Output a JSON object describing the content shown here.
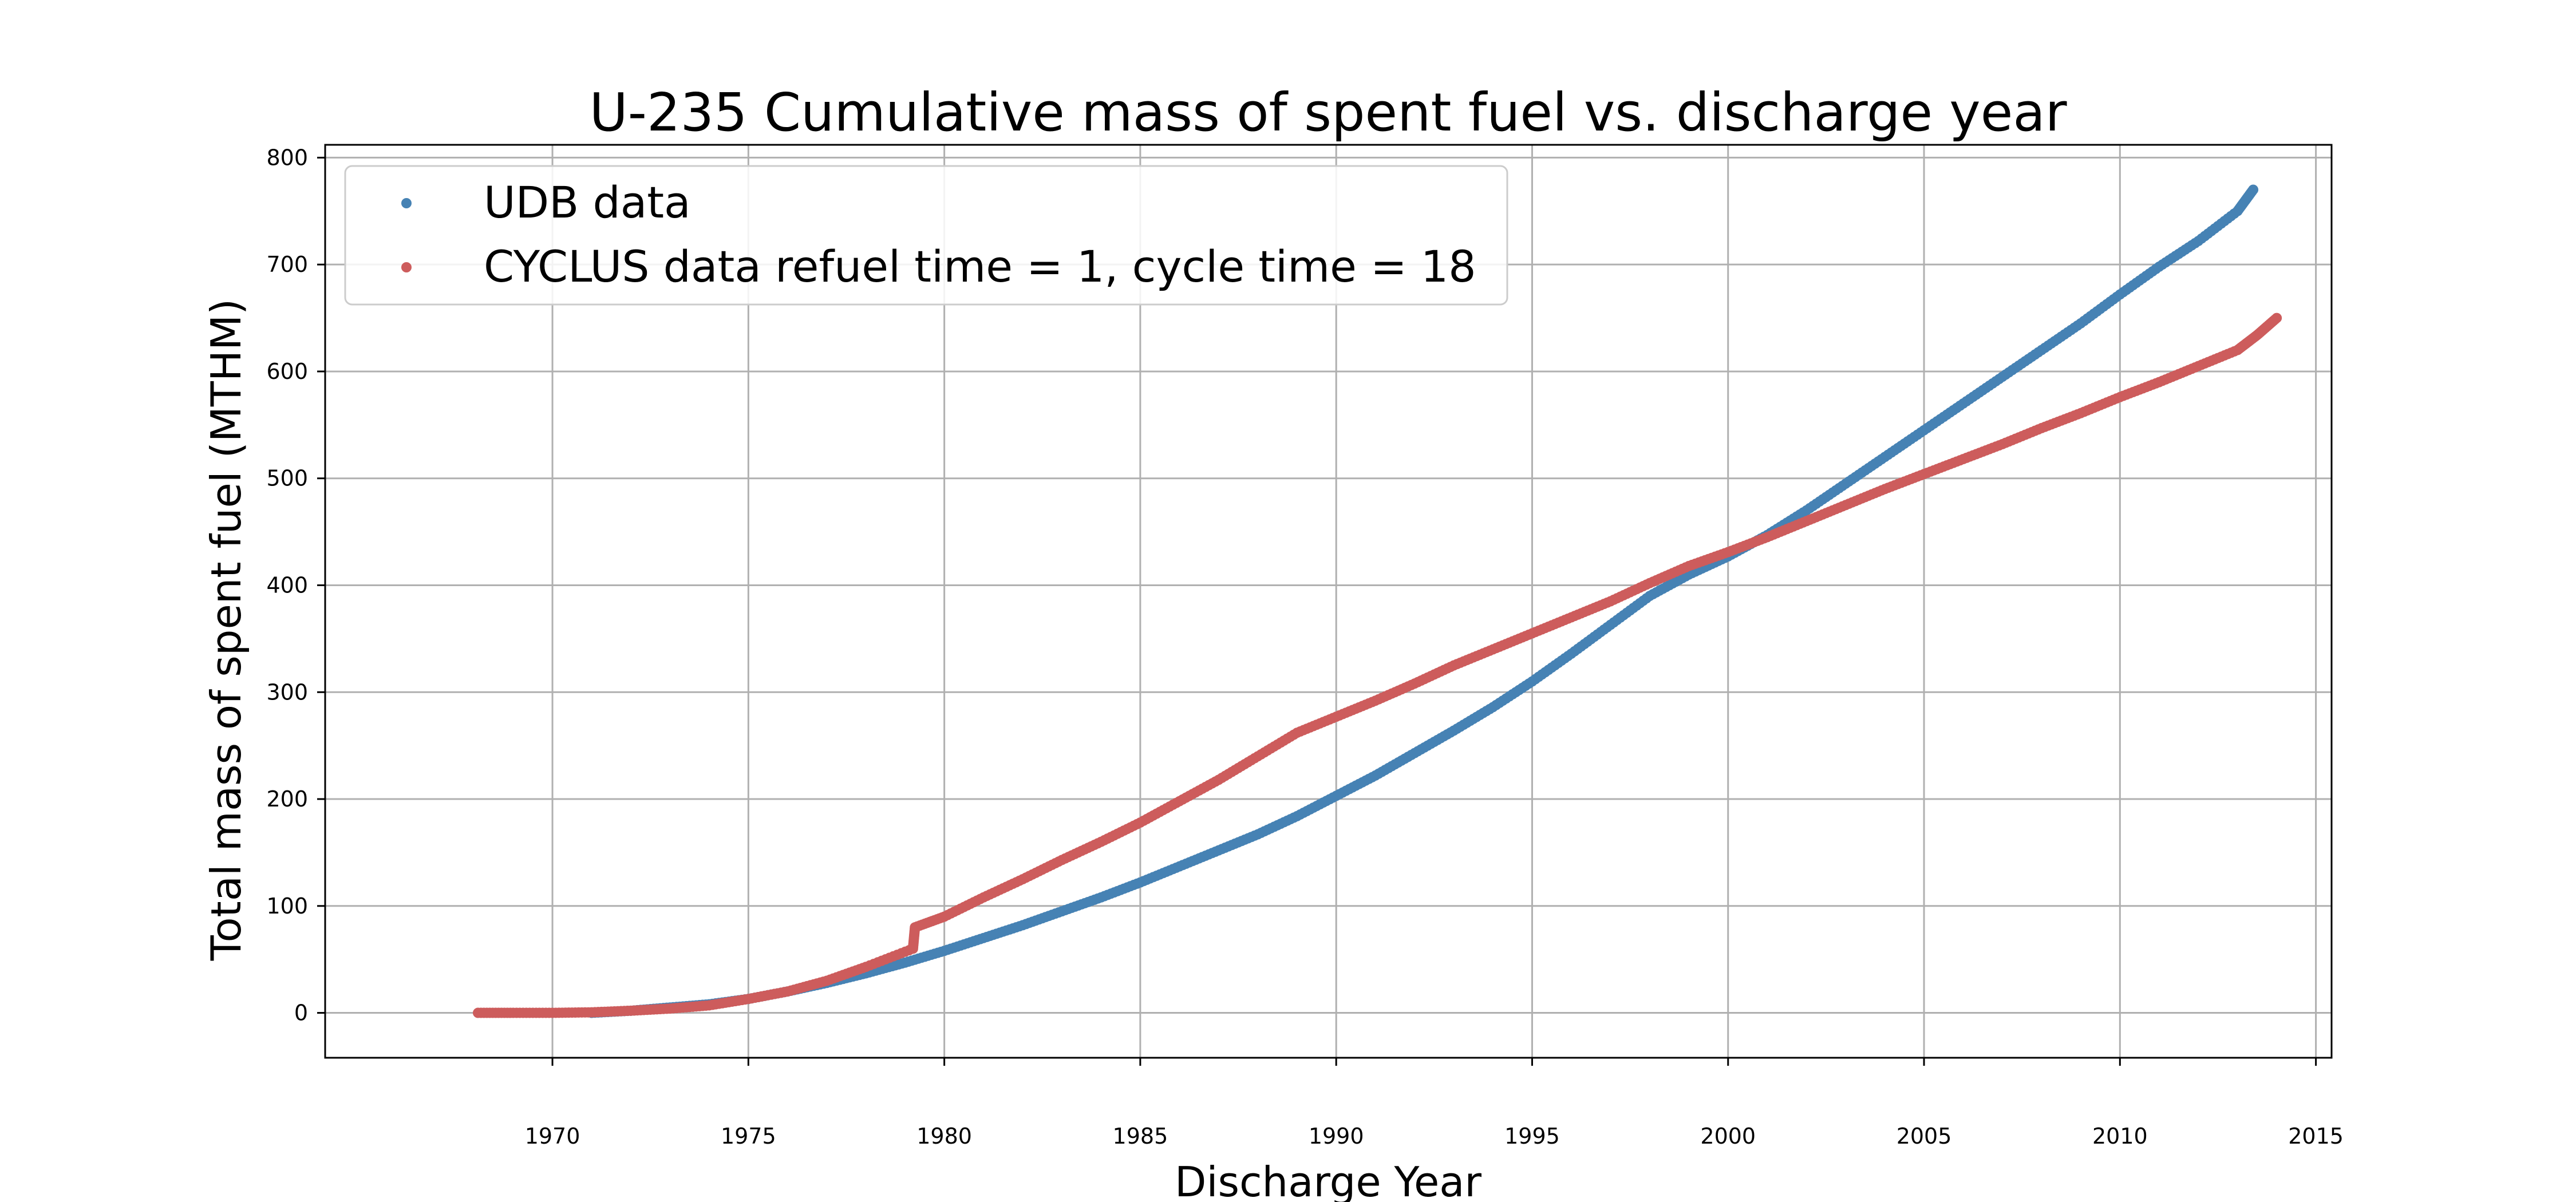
{
  "chart_data": {
    "type": "scatter",
    "title": "U-235 Cumulative mass of spent fuel vs. discharge year",
    "xlabel": "Discharge Year",
    "ylabel": "Total mass of spent fuel (MTHM)",
    "xlim": [
      1964.2,
      2015.4
    ],
    "ylim": [
      -42,
      812
    ],
    "xticks": [
      1970,
      1975,
      1980,
      1985,
      1990,
      1995,
      2000,
      2005,
      2010,
      2015
    ],
    "yticks": [
      0,
      100,
      200,
      300,
      400,
      500,
      600,
      700,
      800
    ],
    "grid": true,
    "legend_position": "top-left",
    "series": [
      {
        "name": "UDB data",
        "color": "#4682b4",
        "points": [
          [
            1971.0,
            0
          ],
          [
            1972.0,
            2
          ],
          [
            1973.0,
            5
          ],
          [
            1974.0,
            8
          ],
          [
            1975.0,
            13
          ],
          [
            1976.0,
            20
          ],
          [
            1977.0,
            28
          ],
          [
            1978.0,
            37
          ],
          [
            1979.0,
            47
          ],
          [
            1980.0,
            58
          ],
          [
            1981.0,
            70
          ],
          [
            1982.0,
            82
          ],
          [
            1983.0,
            95
          ],
          [
            1984.0,
            108
          ],
          [
            1985.0,
            122
          ],
          [
            1986.0,
            137
          ],
          [
            1987.0,
            152
          ],
          [
            1988.0,
            167
          ],
          [
            1989.0,
            184
          ],
          [
            1990.0,
            203
          ],
          [
            1991.0,
            222
          ],
          [
            1992.0,
            243
          ],
          [
            1993.0,
            264
          ],
          [
            1994.0,
            286
          ],
          [
            1995.0,
            310
          ],
          [
            1996.0,
            336
          ],
          [
            1997.0,
            363
          ],
          [
            1998.0,
            390
          ],
          [
            1999.0,
            410
          ],
          [
            2000.0,
            427
          ],
          [
            2001.0,
            447
          ],
          [
            2002.0,
            470
          ],
          [
            2003.0,
            495
          ],
          [
            2004.0,
            520
          ],
          [
            2005.0,
            545
          ],
          [
            2006.0,
            570
          ],
          [
            2007.0,
            595
          ],
          [
            2008.0,
            620
          ],
          [
            2009.0,
            645
          ],
          [
            2010.0,
            672
          ],
          [
            2011.0,
            698
          ],
          [
            2012.0,
            722
          ],
          [
            2013.0,
            750
          ],
          [
            2013.4,
            770
          ]
        ]
      },
      {
        "name": "CYCLUS data  refuel time = 1, cycle time = 18",
        "color": "#cd5c5c",
        "points": [
          [
            1968.1,
            0
          ],
          [
            1969.0,
            0
          ],
          [
            1970.0,
            0
          ],
          [
            1971.0,
            0.5
          ],
          [
            1972.0,
            2
          ],
          [
            1973.0,
            4
          ],
          [
            1974.0,
            7
          ],
          [
            1975.0,
            13
          ],
          [
            1976.0,
            20
          ],
          [
            1977.0,
            30
          ],
          [
            1978.0,
            43
          ],
          [
            1979.2,
            60
          ],
          [
            1979.25,
            80
          ],
          [
            1980.0,
            90
          ],
          [
            1981.0,
            108
          ],
          [
            1982.0,
            125
          ],
          [
            1983.0,
            143
          ],
          [
            1984.0,
            160
          ],
          [
            1985.0,
            178
          ],
          [
            1986.0,
            198
          ],
          [
            1987.0,
            218
          ],
          [
            1988.0,
            240
          ],
          [
            1989.0,
            262
          ],
          [
            1990.0,
            277
          ],
          [
            1991.0,
            292
          ],
          [
            1992.0,
            308
          ],
          [
            1993.0,
            325
          ],
          [
            1994.0,
            340
          ],
          [
            1995.0,
            355
          ],
          [
            1996.0,
            370
          ],
          [
            1997.0,
            385
          ],
          [
            1998.0,
            402
          ],
          [
            1999.0,
            418
          ],
          [
            2000.0,
            431
          ],
          [
            2001.0,
            445
          ],
          [
            2002.0,
            460
          ],
          [
            2003.0,
            475
          ],
          [
            2004.0,
            490
          ],
          [
            2005.0,
            504
          ],
          [
            2006.0,
            518
          ],
          [
            2007.0,
            532
          ],
          [
            2008.0,
            547
          ],
          [
            2009.0,
            561
          ],
          [
            2010.0,
            576
          ],
          [
            2011.0,
            590
          ],
          [
            2012.0,
            605
          ],
          [
            2013.0,
            620
          ],
          [
            2013.5,
            634
          ],
          [
            2014.0,
            650
          ]
        ]
      }
    ]
  }
}
